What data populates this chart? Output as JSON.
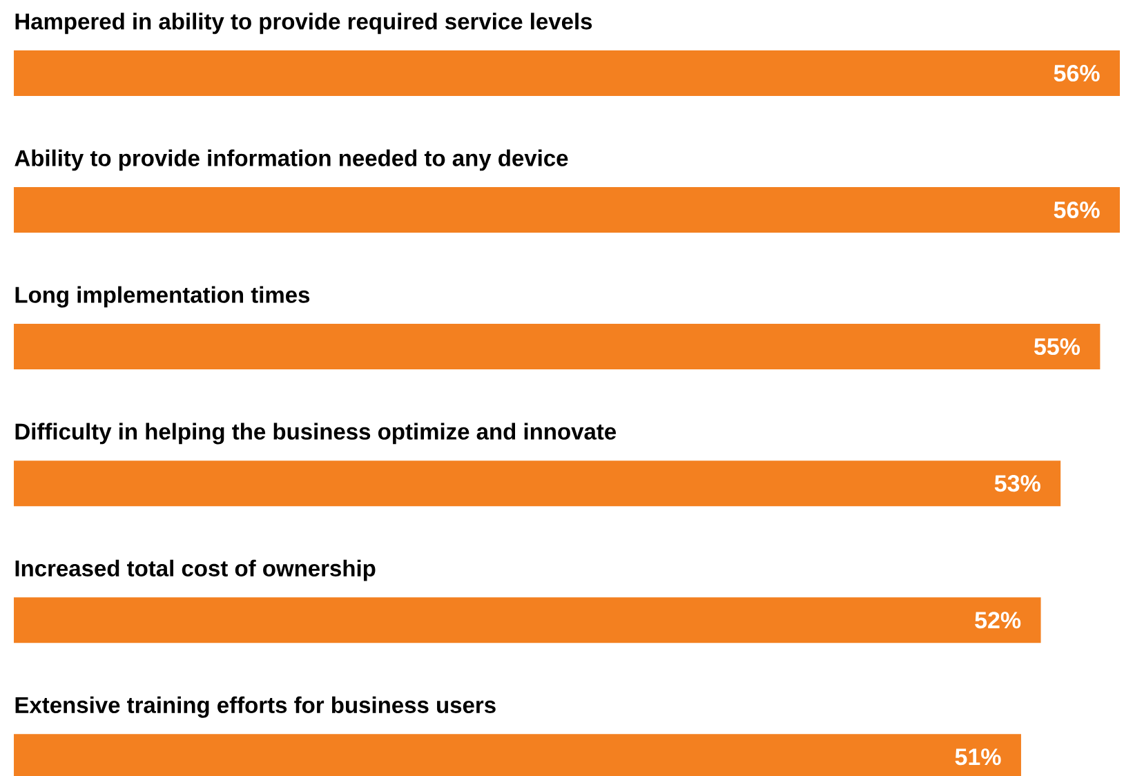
{
  "chart_data": {
    "type": "bar",
    "orientation": "horizontal",
    "categories": [
      "Hampered in ability to provide required service levels",
      "Ability to provide information needed to any device",
      "Long implementation times",
      "Difficulty in helping the business optimize and innovate",
      "Increased total cost of ownership",
      "Extensive training efforts for business users"
    ],
    "values": [
      56,
      56,
      55,
      53,
      52,
      51
    ],
    "value_labels": [
      "56%",
      "56%",
      "55%",
      "53%",
      "52%",
      "51%"
    ],
    "color": "#f38020"
  }
}
